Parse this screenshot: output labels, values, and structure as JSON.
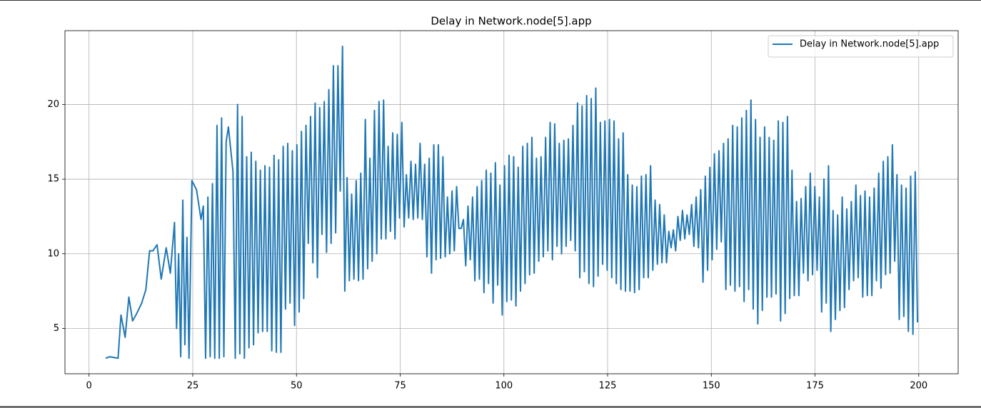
{
  "chart_data": {
    "type": "line",
    "title": "Delay in Network.node[5].app",
    "x": [
      4,
      5,
      7,
      7.7,
      8.7,
      9.6,
      10.5,
      11.5,
      12.7,
      13.7,
      14.6,
      15.4,
      16.4,
      17.4,
      18.6,
      19.6,
      20.6,
      21.1,
      21.6,
      22.1,
      22.6,
      23.1,
      23.6,
      24.1,
      24.8,
      25.35,
      25.9,
      26.45,
      27,
      27.55,
      28.1,
      28.65,
      29.2,
      29.75,
      30.3,
      30.85,
      31.4,
      31.95,
      32.5,
      33.05,
      33.6,
      34.15,
      34.7,
      35.25,
      35.8,
      36.35,
      36.9,
      37.45,
      38,
      38.55,
      39.1,
      39.65,
      40.2,
      40.75,
      41.3,
      41.85,
      42.4,
      42.95,
      43.5,
      44.05,
      44.6,
      45.15,
      45.7,
      46.25,
      46.8,
      47.35,
      47.9,
      48.45,
      49,
      49.55,
      50.1,
      50.65,
      51.2,
      51.75,
      52.3,
      52.85,
      53.4,
      53.95,
      54.5,
      55.05,
      55.6,
      56.15,
      56.7,
      57.25,
      57.8,
      58.35,
      58.9,
      59.45,
      60,
      60.55,
      61.1,
      61.65,
      62.2,
      62.75,
      63.3,
      63.85,
      64.4,
      64.95,
      65.5,
      66.05,
      66.6,
      67.15,
      67.7,
      68.25,
      68.8,
      69.35,
      69.9,
      70.45,
      71,
      71.55,
      72.1,
      72.65,
      73.2,
      73.75,
      74.3,
      74.85,
      75.4,
      75.95,
      76.5,
      77.05,
      77.6,
      78.15,
      78.7,
      79.25,
      79.8,
      80.35,
      80.9,
      81.45,
      82,
      82.55,
      83.1,
      83.65,
      84.2,
      84.75,
      85.3,
      85.85,
      86.4,
      86.95,
      87.5,
      88.05,
      88.6,
      89.15,
      89.7,
      90.25,
      90.8,
      91.35,
      91.9,
      92.45,
      93,
      93.55,
      94.1,
      94.65,
      95.2,
      95.75,
      96.3,
      96.85,
      97.4,
      97.95,
      98.5,
      99.05,
      99.6,
      100.15,
      100.7,
      101.25,
      101.8,
      102.35,
      102.9,
      103.45,
      104,
      104.55,
      105.1,
      105.65,
      106.2,
      106.75,
      107.3,
      107.85,
      108.4,
      108.95,
      109.5,
      110.05,
      110.6,
      111.15,
      111.7,
      112.25,
      112.8,
      113.35,
      113.9,
      114.45,
      115,
      115.55,
      116.1,
      116.65,
      117.2,
      117.75,
      118.3,
      118.85,
      119.4,
      119.95,
      120.5,
      121.05,
      121.6,
      122.15,
      122.7,
      123.25,
      123.8,
      124.35,
      124.9,
      125.45,
      126,
      126.55,
      127.1,
      127.65,
      128.2,
      128.75,
      129.3,
      129.85,
      130.4,
      130.95,
      131.5,
      132.05,
      132.6,
      133.15,
      133.7,
      134.25,
      134.8,
      135.35,
      135.9,
      136.45,
      137,
      137.55,
      138.1,
      138.65,
      139.2,
      139.75,
      140.3,
      140.85,
      141.4,
      141.95,
      142.5,
      143.05,
      143.6,
      144.15,
      144.7,
      145.25,
      145.8,
      146.35,
      146.9,
      147.45,
      148,
      148.55,
      149.1,
      149.65,
      150.2,
      150.75,
      151.3,
      151.85,
      152.4,
      152.95,
      153.5,
      154.05,
      154.6,
      155.15,
      155.7,
      156.25,
      156.8,
      157.35,
      157.9,
      158.45,
      159,
      159.55,
      160.1,
      160.65,
      161.2,
      161.75,
      162.3,
      162.85,
      163.4,
      163.95,
      164.5,
      165.05,
      165.6,
      166.15,
      166.7,
      167.25,
      167.8,
      168.35,
      168.9,
      169.45,
      170,
      170.55,
      171.1,
      171.65,
      172.2,
      172.75,
      173.3,
      173.85,
      174.4,
      174.95,
      175.5,
      176.05,
      176.6,
      177.15,
      177.7,
      178.25,
      178.8,
      179.35,
      179.9,
      180.45,
      181,
      181.55,
      182.1,
      182.65,
      183.2,
      183.75,
      184.3,
      184.85,
      185.4,
      185.95,
      186.5,
      187.05,
      187.6,
      188.15,
      188.7,
      189.25,
      189.8,
      190.35,
      190.9,
      191.45,
      192,
      192.55,
      193.1,
      193.65,
      194.2,
      194.75,
      195.3,
      195.85,
      196.4,
      196.95,
      197.5,
      198.05,
      198.6,
      199.15,
      199.7
    ],
    "series": [
      {
        "name": "Delay in Network.node[5].app",
        "color": "#1f77b4",
        "values": [
          3.0,
          3.1,
          3.0,
          5.9,
          4.4,
          7.1,
          5.5,
          6.0,
          6.7,
          7.6,
          10.2,
          10.2,
          10.6,
          8.3,
          10.4,
          8.7,
          12.1,
          5.0,
          10.0,
          3.1,
          13.6,
          3.9,
          11.1,
          3.0,
          14.9,
          14.6,
          14.3,
          13.3,
          12.3,
          13.2,
          3.0,
          13.8,
          3.1,
          14.7,
          3.0,
          18.6,
          3.0,
          19.1,
          3.1,
          17.5,
          18.5,
          17.0,
          15.5,
          3.0,
          20.0,
          3.3,
          19.2,
          3.0,
          16.5,
          3.7,
          16.8,
          3.9,
          16.2,
          4.7,
          15.6,
          4.8,
          15.9,
          4.8,
          15.8,
          3.5,
          16.6,
          3.4,
          16.3,
          3.4,
          17.2,
          6.3,
          17.4,
          6.7,
          16.9,
          5.2,
          17.3,
          6.1,
          18.2,
          7.0,
          18.6,
          10.7,
          19.2,
          9.4,
          20.1,
          8.4,
          19.8,
          11.3,
          20.2,
          10.1,
          21.0,
          10.7,
          22.6,
          11.4,
          22.6,
          14.2,
          23.9,
          7.5,
          15.1,
          8.2,
          14.0,
          8.3,
          14.9,
          8.2,
          15.4,
          8.3,
          19.0,
          9.0,
          16.4,
          9.5,
          19.6,
          10.0,
          20.2,
          11.0,
          20.3,
          11.0,
          17.2,
          11.5,
          18.1,
          11.0,
          18.0,
          12.4,
          18.8,
          11.8,
          15.3,
          12.4,
          16.2,
          12.3,
          16.0,
          12.4,
          17.4,
          12.3,
          16.0,
          9.8,
          16.4,
          8.7,
          17.3,
          9.6,
          17.3,
          9.7,
          16.5,
          9.8,
          13.8,
          10.0,
          14.2,
          10.2,
          14.5,
          11.7,
          11.7,
          12.3,
          9.2,
          13.2,
          9.6,
          13.8,
          8.2,
          14.5,
          8.3,
          14.9,
          7.4,
          15.6,
          8.0,
          15.4,
          6.7,
          16.1,
          7.9,
          14.6,
          5.9,
          15.9,
          6.8,
          16.6,
          6.9,
          16.5,
          6.5,
          15.8,
          7.5,
          17.2,
          8.0,
          17.4,
          8.6,
          17.8,
          8.7,
          16.4,
          9.5,
          16.5,
          9.8,
          17.8,
          10.2,
          18.8,
          9.6,
          18.7,
          10.5,
          17.4,
          10.0,
          17.6,
          10.5,
          17.7,
          10.9,
          18.6,
          10.2,
          20.1,
          8.4,
          19.9,
          8.8,
          20.6,
          8.0,
          20.4,
          7.8,
          21.1,
          8.5,
          18.8,
          9.3,
          18.9,
          8.9,
          19.0,
          8.4,
          18.9,
          8.0,
          17.7,
          7.6,
          18.1,
          7.5,
          15.3,
          7.5,
          14.6,
          7.4,
          14.5,
          7.6,
          15.2,
          8.4,
          15.3,
          8.4,
          15.9,
          8.9,
          13.6,
          9.3,
          13.3,
          9.4,
          12.6,
          9.4,
          11.5,
          10.4,
          11.6,
          10.2,
          12.5,
          10.9,
          12.9,
          11.0,
          12.6,
          11.3,
          13.3,
          10.5,
          13.8,
          10.4,
          14.3,
          8.1,
          15.2,
          8.9,
          15.8,
          9.6,
          16.7,
          10.3,
          16.9,
          10.8,
          17.4,
          7.6,
          17.7,
          7.9,
          18.6,
          7.5,
          18.5,
          7.8,
          19.1,
          6.8,
          19.6,
          7.6,
          20.3,
          6.3,
          19.0,
          5.3,
          17.8,
          6.2,
          18.5,
          7.1,
          17.8,
          7.1,
          17.6,
          7.3,
          18.9,
          5.5,
          18.8,
          6.0,
          19.2,
          7.0,
          15.6,
          7.2,
          13.5,
          7.2,
          13.7,
          8.7,
          14.5,
          8.2,
          15.4,
          8.6,
          14.5,
          8.9,
          13.8,
          6.1,
          15.0,
          6.7,
          15.9,
          4.8,
          12.9,
          5.6,
          12.6,
          6.2,
          13.8,
          6.4,
          13.0,
          7.6,
          13.5,
          8.2,
          14.6,
          8.4,
          13.9,
          7.1,
          14.2,
          7.2,
          13.8,
          7.2,
          14.4,
          8.2,
          15.4,
          7.7,
          16.2,
          8.6,
          16.5,
          8.7,
          17.3,
          9.5,
          15.3,
          5.6,
          14.6,
          5.8,
          14.4,
          4.8,
          15.2,
          4.6,
          15.5,
          5.4
        ]
      }
    ],
    "xlim": [
      -5.8,
      209.5
    ],
    "ylim": [
      1.96,
      24.95
    ],
    "xticks": [
      0,
      25,
      50,
      75,
      100,
      125,
      150,
      175,
      200
    ],
    "yticks": [
      5,
      10,
      15,
      20
    ],
    "grid": true,
    "legend": "upper right"
  }
}
